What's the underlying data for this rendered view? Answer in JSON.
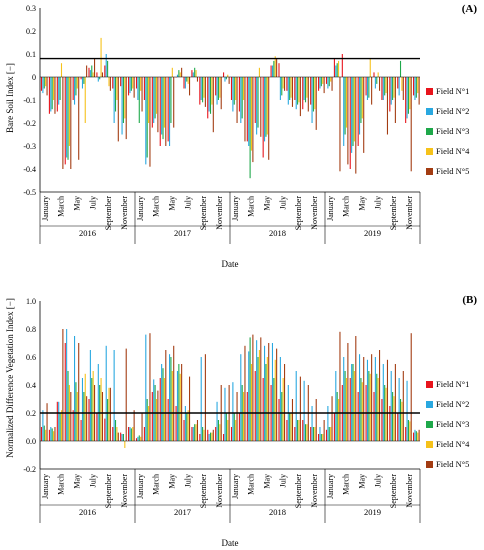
{
  "chart_data": [
    {
      "panel": "(A)",
      "type": "bar",
      "ylabel": "Bare Soil Index [−]",
      "xlabel": "Date",
      "ylim": [
        -0.5,
        0.3
      ],
      "yticks": [
        -0.5,
        -0.4,
        -0.3,
        -0.2,
        -0.1,
        0,
        0.1,
        0.2,
        0.3
      ],
      "ytick_labels": [
        "-0.5",
        "-0.4",
        "-0.3",
        "-0.2",
        "-0.1",
        "0",
        "0.1",
        "0.2",
        "0.3"
      ],
      "threshold": 0.08,
      "month_labels": [
        "January",
        "March",
        "May",
        "July",
        "September",
        "November"
      ],
      "years": [
        "2016",
        "2017",
        "2018",
        "2019"
      ],
      "legend": [
        "Field N°1",
        "Field N°2",
        "Field N°3",
        "Field N°4",
        "Field N°5"
      ],
      "legend_position": "right",
      "grid": false,
      "series": [
        {
          "name": "Field N°1",
          "values": [
            -0.06,
            -0.16,
            -0.15,
            -0.38,
            -0.1,
            -0.01,
            0.04,
            0.02,
            0.05,
            -0.05,
            -0.04,
            -0.08,
            -0.05,
            -0.1,
            -0.22,
            -0.3,
            -0.28,
            0.0,
            -0.05,
            0.03,
            -0.12,
            -0.18,
            -0.08,
            0.02,
            -0.1,
            -0.15,
            -0.28,
            -0.2,
            -0.35,
            0.05,
            0.06,
            -0.06,
            -0.1,
            -0.14,
            -0.12,
            -0.06,
            -0.03,
            0.08,
            0.1,
            -0.4,
            -0.3,
            -0.08,
            0.02,
            -0.1,
            -0.15,
            -0.05,
            -0.2,
            -0.08
          ]
        },
        {
          "name": "Field N°2",
          "values": [
            -0.07,
            -0.15,
            -0.12,
            -0.35,
            -0.12,
            -0.05,
            0.03,
            -0.02,
            0.1,
            -0.2,
            -0.25,
            -0.07,
            -0.1,
            -0.38,
            -0.2,
            -0.25,
            -0.3,
            0.01,
            -0.05,
            0.02,
            -0.1,
            -0.15,
            -0.12,
            -0.02,
            -0.15,
            -0.2,
            -0.3,
            -0.25,
            -0.28,
            0.05,
            -0.1,
            -0.12,
            -0.14,
            -0.1,
            -0.2,
            -0.05,
            -0.05,
            0.05,
            -0.3,
            -0.33,
            -0.25,
            -0.1,
            -0.05,
            -0.1,
            -0.12,
            -0.08,
            -0.18,
            -0.1
          ]
        },
        {
          "name": "Field N°3",
          "values": [
            -0.05,
            -0.14,
            -0.1,
            -0.36,
            -0.08,
            -0.03,
            0.05,
            -0.01,
            0.07,
            -0.15,
            -0.2,
            -0.06,
            -0.2,
            -0.35,
            -0.18,
            -0.27,
            -0.2,
            0.03,
            -0.02,
            0.04,
            -0.11,
            -0.16,
            -0.1,
            -0.01,
            -0.12,
            -0.18,
            -0.44,
            -0.22,
            -0.26,
            0.07,
            -0.08,
            -0.1,
            -0.12,
            -0.11,
            -0.15,
            -0.04,
            -0.04,
            0.06,
            -0.25,
            -0.3,
            -0.2,
            -0.09,
            -0.03,
            -0.08,
            -0.1,
            0.07,
            -0.16,
            -0.09
          ]
        },
        {
          "name": "Field N°4",
          "values": [
            -0.04,
            -0.1,
            0.06,
            -0.3,
            -0.05,
            -0.2,
            0.02,
            0.17,
            -0.04,
            -0.1,
            -0.18,
            -0.05,
            -0.06,
            -0.2,
            -0.16,
            -0.22,
            0.04,
            0.02,
            -0.03,
            0.03,
            -0.09,
            -0.12,
            -0.09,
            0.01,
            -0.1,
            -0.1,
            -0.32,
            0.04,
            -0.25,
            0.09,
            -0.05,
            -0.09,
            -0.11,
            -0.09,
            -0.14,
            -0.03,
            -0.02,
            0.07,
            -0.22,
            -0.28,
            -0.18,
            0.08,
            0.02,
            -0.07,
            -0.09,
            -0.06,
            -0.14,
            -0.07
          ]
        },
        {
          "name": "Field N°5",
          "values": [
            -0.08,
            -0.16,
            -0.4,
            -0.4,
            -0.36,
            0.05,
            0.08,
            0.02,
            -0.06,
            -0.28,
            -0.27,
            -0.09,
            -0.15,
            -0.39,
            -0.24,
            -0.3,
            -0.22,
            0.04,
            -0.08,
            -0.02,
            -0.13,
            -0.24,
            -0.14,
            -0.03,
            -0.2,
            -0.28,
            -0.37,
            -0.26,
            -0.36,
            0.08,
            -0.06,
            -0.13,
            -0.17,
            -0.15,
            -0.23,
            -0.07,
            -0.06,
            -0.41,
            -0.38,
            -0.42,
            -0.33,
            -0.12,
            -0.06,
            -0.25,
            -0.2,
            -0.1,
            -0.41,
            -0.12
          ]
        }
      ]
    },
    {
      "panel": "(B)",
      "type": "bar",
      "ylabel": "Normalized Difference Vegetation Index [−]",
      "xlabel": "Date",
      "ylim": [
        -0.2,
        1.0
      ],
      "yticks": [
        -0.2,
        0,
        0.2,
        0.4,
        0.6,
        0.8,
        1.0
      ],
      "ytick_labels": [
        "-0.2",
        "0.0",
        "0.2",
        "0.4",
        "0.6",
        "0.8",
        "1.0"
      ],
      "threshold": 0.2,
      "month_labels": [
        "January",
        "March",
        "May",
        "July",
        "September",
        "November"
      ],
      "years": [
        "2016",
        "2017",
        "2018",
        "2019"
      ],
      "legend": [
        "Field N°1",
        "Field N°2",
        "Field N°3",
        "Field N°4",
        "Field N°5"
      ],
      "legend_position": "right",
      "grid": false,
      "series": [
        {
          "name": "Field N°1",
          "values": [
            0.1,
            0.08,
            0.28,
            0.7,
            0.22,
            0.15,
            0.3,
            0.2,
            0.16,
            0.1,
            0.06,
            0.1,
            0.02,
            0.1,
            0.35,
            0.45,
            0.3,
            0.25,
            0.15,
            0.1,
            0.05,
            0.08,
            0.1,
            0.05,
            0.1,
            0.2,
            0.35,
            0.5,
            0.45,
            0.4,
            0.3,
            0.15,
            0.1,
            0.15,
            0.1,
            0.05,
            0.08,
            0.2,
            0.4,
            0.45,
            0.35,
            0.4,
            0.35,
            0.3,
            0.25,
            0.2,
            0.1,
            0.06
          ]
        },
        {
          "name": "Field N°2",
          "values": [
            0.22,
            0.1,
            0.28,
            0.8,
            0.75,
            0.45,
            0.65,
            0.55,
            0.68,
            0.65,
            0.05,
            0.1,
            0.03,
            0.76,
            0.44,
            0.55,
            0.62,
            0.5,
            0.25,
            0.1,
            0.6,
            0.05,
            0.28,
            0.38,
            0.42,
            0.62,
            0.64,
            0.72,
            0.68,
            0.7,
            0.6,
            0.4,
            0.5,
            0.43,
            0.25,
            0.1,
            0.25,
            0.5,
            0.6,
            0.55,
            0.62,
            0.58,
            0.6,
            0.55,
            0.5,
            0.45,
            0.43,
            0.08
          ]
        },
        {
          "name": "Field N°3",
          "values": [
            0.11,
            0.09,
            0.2,
            0.5,
            0.42,
            0.35,
            0.45,
            0.4,
            0.3,
            0.15,
            0.05,
            0.09,
            0.04,
            0.3,
            0.4,
            0.52,
            0.6,
            0.55,
            0.2,
            0.12,
            0.1,
            0.06,
            0.15,
            0.2,
            0.2,
            0.4,
            0.74,
            0.6,
            0.55,
            0.45,
            0.35,
            0.2,
            0.15,
            0.12,
            0.1,
            0.05,
            0.1,
            0.35,
            0.5,
            0.55,
            0.45,
            0.5,
            0.48,
            0.4,
            0.35,
            0.3,
            0.15,
            0.07
          ]
        },
        {
          "name": "Field N°4",
          "values": [
            0.08,
            0.07,
            0.22,
            0.4,
            0.35,
            0.48,
            0.5,
            0.45,
            0.38,
            0.1,
            -0.05,
            0.1,
            0.03,
            0.25,
            0.3,
            0.45,
            0.5,
            0.48,
            0.22,
            0.12,
            0.08,
            0.06,
            0.12,
            0.15,
            0.15,
            0.35,
            0.55,
            0.65,
            0.6,
            0.58,
            0.45,
            0.2,
            0.15,
            0.12,
            0.1,
            0.05,
            0.1,
            0.3,
            0.45,
            0.5,
            0.42,
            0.48,
            0.45,
            0.38,
            0.32,
            0.28,
            0.14,
            0.06
          ]
        },
        {
          "name": "Field N°5",
          "values": [
            0.27,
            0.1,
            0.8,
            0.35,
            0.7,
            0.32,
            0.4,
            0.35,
            0.38,
            0.06,
            0.66,
            0.22,
            0.2,
            0.77,
            0.36,
            0.65,
            0.68,
            0.55,
            0.46,
            0.15,
            0.62,
            0.08,
            0.4,
            0.4,
            0.35,
            0.68,
            0.76,
            0.74,
            0.7,
            0.66,
            0.55,
            0.3,
            0.46,
            0.4,
            0.3,
            0.15,
            0.32,
            0.78,
            0.7,
            0.75,
            0.6,
            0.62,
            0.65,
            0.58,
            0.55,
            0.5,
            0.77,
            0.08
          ]
        }
      ]
    }
  ]
}
